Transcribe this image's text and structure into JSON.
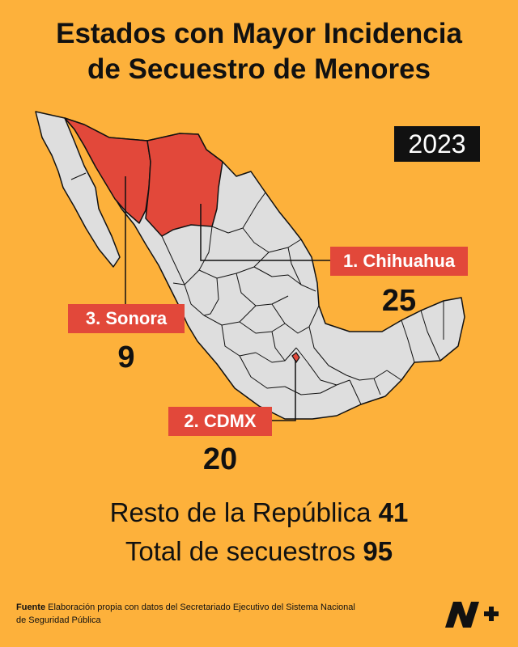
{
  "title_line1": "Estados con Mayor Incidencia",
  "title_line2": "de Secuestro de Menores",
  "year": "2023",
  "states": [
    {
      "label": "1. Chihuahua",
      "value": "25",
      "color": "#E2483A"
    },
    {
      "label": "2. CDMX",
      "value": "20",
      "color": "#E2483A"
    },
    {
      "label": "3. Sonora",
      "value": "9",
      "color": "#E2483A"
    }
  ],
  "summary": {
    "rest_label": "Resto de la República",
    "rest_value": "41",
    "total_label": "Total de secuestros",
    "total_value": "95"
  },
  "source": {
    "label": "Fuente",
    "text": "Elaboración propia con datos del Secretariado Ejecutivo del Sistema Nacional de Seguridad Pública"
  },
  "colors": {
    "background": "#FDB13B",
    "map_fill": "#DEDEDE",
    "highlight": "#E2483A",
    "outline": "#111111"
  },
  "logo_icon": "n-plus-logo"
}
